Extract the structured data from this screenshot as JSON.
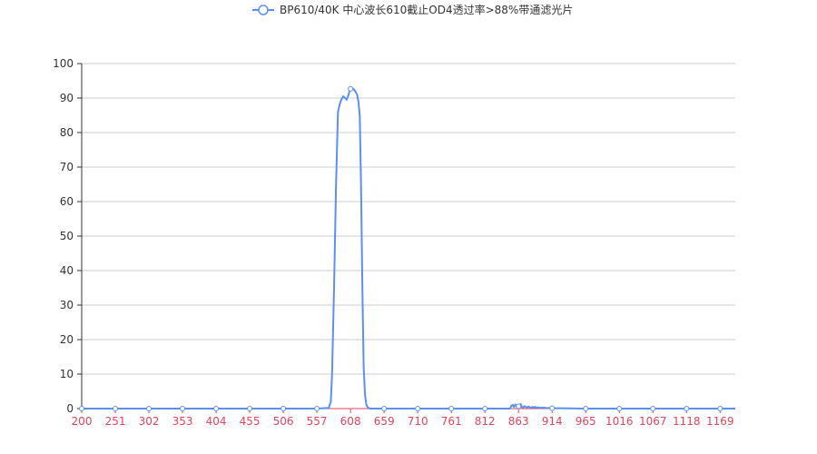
{
  "chart_data": {
    "type": "line",
    "title": "",
    "xlabel": "",
    "ylabel": "",
    "xlim": [
      200,
      1192
    ],
    "ylim": [
      0,
      100
    ],
    "grid": true,
    "legend_position": "top-center",
    "x_ticks": [
      200,
      251,
      302,
      353,
      404,
      455,
      506,
      557,
      608,
      659,
      710,
      761,
      812,
      863,
      914,
      965,
      1016,
      1067,
      1118,
      1169
    ],
    "y_ticks": [
      0,
      10,
      20,
      30,
      40,
      50,
      60,
      70,
      80,
      90,
      100
    ],
    "colors": {
      "series": "#5b8ff0",
      "x_tick_label": "#e0435e",
      "axis": "#333333",
      "grid": "#cccccc"
    },
    "series": [
      {
        "name": "BP610/40K 中心波长610截止OD4透过率>88%带通滤光片",
        "x": [
          200,
          557,
          575,
          578,
          580,
          583,
          586,
          589,
          592,
          594,
          597,
          600,
          602,
          605,
          607,
          610,
          613,
          615,
          618,
          620,
          622,
          624,
          626,
          628,
          630,
          632,
          634,
          636,
          639,
          659,
          850,
          852,
          854,
          856,
          858,
          860,
          862,
          864,
          866,
          868,
          870,
          872,
          874,
          876,
          878,
          880,
          882,
          884,
          886,
          888,
          890,
          892,
          894,
          896,
          898,
          900,
          905,
          910,
          914,
          930,
          965,
          1016,
          1067,
          1118,
          1169,
          1192
        ],
        "y": [
          0,
          0,
          0.2,
          2,
          10,
          35,
          65,
          86,
          88.5,
          89.5,
          90.5,
          90,
          89.5,
          91,
          92.5,
          93,
          92.5,
          92,
          91,
          89,
          85,
          65,
          35,
          12,
          4,
          1.2,
          0.4,
          0.1,
          0,
          0,
          0,
          0.8,
          1.1,
          0.5,
          1.2,
          0.6,
          0.9,
          0.4,
          1.3,
          0.5,
          0.3,
          0.7,
          0.5,
          0.3,
          0.6,
          0.4,
          0.2,
          0.5,
          0.3,
          0.5,
          0.2,
          0.4,
          0.2,
          0.3,
          0.2,
          0.3,
          0.2,
          0.15,
          0.1,
          0.1,
          0,
          0,
          0,
          0,
          0,
          0
        ]
      }
    ]
  }
}
